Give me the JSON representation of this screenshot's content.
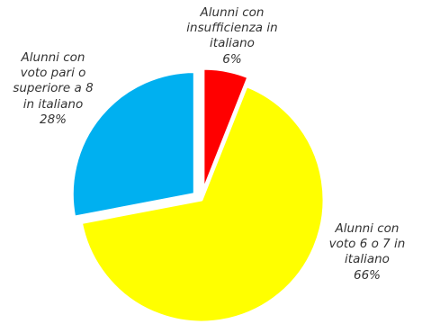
{
  "chart_data": {
    "type": "pie",
    "title": "",
    "slices": [
      {
        "label_lines": [
          "Alunni con",
          "insufficienza in",
          "italiano"
        ],
        "percent_label": "6%",
        "value": 6,
        "color": "#ff0000"
      },
      {
        "label_lines": [
          "Alunni con",
          "voto 6 o 7 in",
          "italiano"
        ],
        "percent_label": "66%",
        "value": 66,
        "color": "#ffff00"
      },
      {
        "label_lines": [
          "Alunni con",
          "voto pari o",
          "superiore a 8",
          "in italiano"
        ],
        "percent_label": "28%",
        "value": 28,
        "color": "#00b0f0"
      }
    ],
    "legend": "none",
    "exploded": true
  }
}
